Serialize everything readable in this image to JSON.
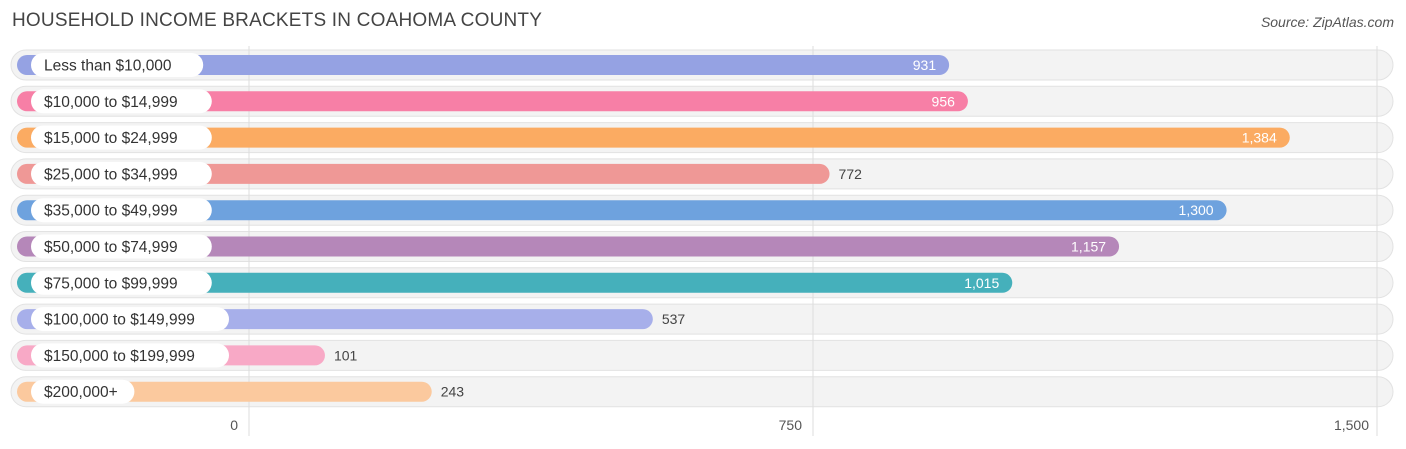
{
  "title": "HOUSEHOLD INCOME BRACKETS IN COAHOMA COUNTY",
  "source": "Source: ZipAtlas.com",
  "chart_data": {
    "type": "bar",
    "orientation": "horizontal",
    "title": "HOUSEHOLD INCOME BRACKETS IN COAHOMA COUNTY",
    "categories": [
      "Less than $10,000",
      "$10,000 to $14,999",
      "$15,000 to $24,999",
      "$25,000 to $34,999",
      "$35,000 to $49,999",
      "$50,000 to $74,999",
      "$75,000 to $99,999",
      "$100,000 to $149,999",
      "$150,000 to $199,999",
      "$200,000+"
    ],
    "values": [
      931,
      956,
      1384,
      772,
      1300,
      1157,
      1015,
      537,
      101,
      243
    ],
    "value_labels": [
      "931",
      "956",
      "1,384",
      "772",
      "1,300",
      "1,157",
      "1,015",
      "537",
      "101",
      "243"
    ],
    "colors": [
      "#95a2e3",
      "#f77fa6",
      "#fbab62",
      "#ef9896",
      "#6ea2de",
      "#b587b9",
      "#45b0bb",
      "#a7afea",
      "#f8a9c6",
      "#fbc99e"
    ],
    "xlim": [
      0,
      1500
    ],
    "xticks": [
      0,
      750,
      1500
    ],
    "xtick_labels": [
      "0",
      "750",
      "1,500"
    ],
    "grid": true,
    "legend": "none"
  }
}
